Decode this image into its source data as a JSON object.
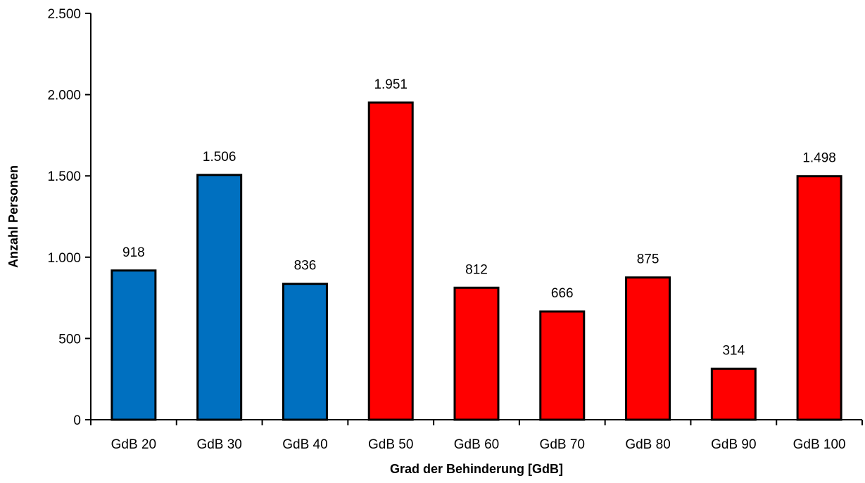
{
  "chart_data": {
    "type": "bar",
    "title": "",
    "xlabel": "Grad der Behinderung [GdB]",
    "ylabel": "Anzahl Personen",
    "ylim": [
      0,
      2500
    ],
    "yticks": [
      0,
      500,
      1000,
      1500,
      2000,
      2500
    ],
    "ytick_labels": [
      "0",
      "500",
      "1.000",
      "1.500",
      "2.000",
      "2.500"
    ],
    "categories": [
      "GdB 20",
      "GdB 30",
      "GdB 40",
      "GdB 50",
      "GdB 60",
      "GdB 70",
      "GdB 80",
      "GdB 90",
      "GdB 100"
    ],
    "values": [
      918,
      1506,
      836,
      1951,
      812,
      666,
      875,
      314,
      1498
    ],
    "value_labels": [
      "918",
      "1.506",
      "836",
      "1.951",
      "812",
      "666",
      "875",
      "314",
      "1.498"
    ],
    "bar_colors": [
      "#0070C0",
      "#0070C0",
      "#0070C0",
      "#FF0000",
      "#FF0000",
      "#FF0000",
      "#FF0000",
      "#FF0000",
      "#FF0000"
    ],
    "bar_edge_color": "#000000",
    "grid": false,
    "legend": "none"
  }
}
